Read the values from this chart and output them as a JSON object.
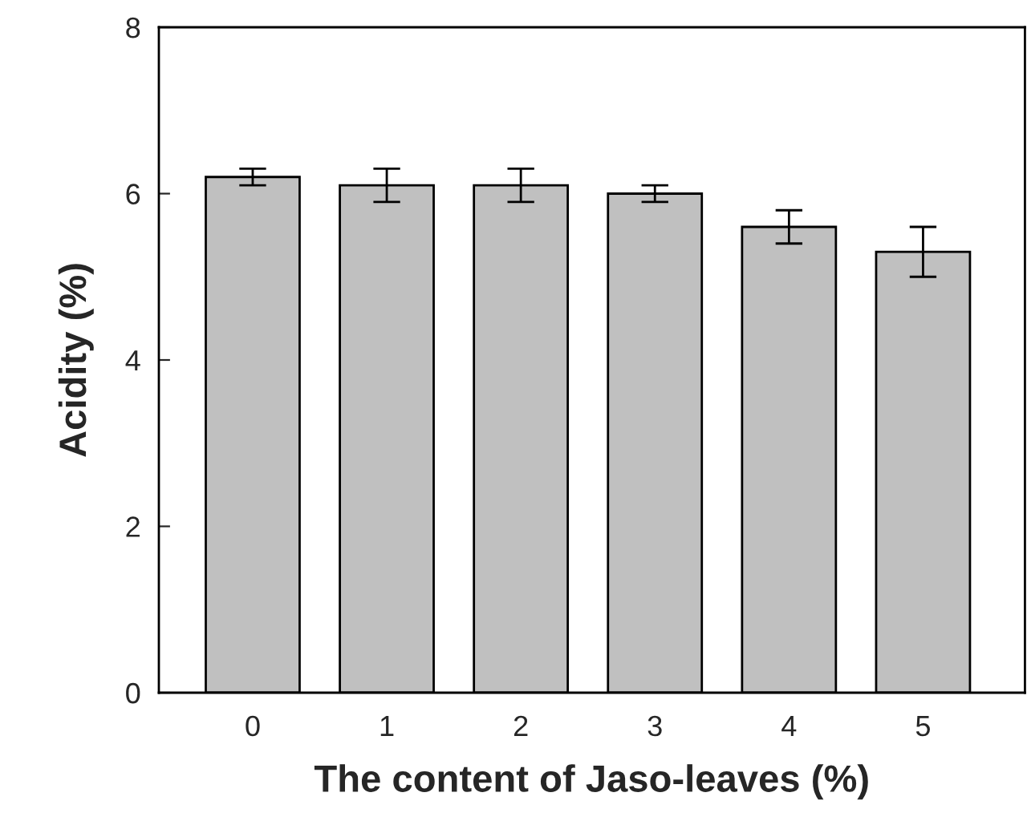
{
  "chart_data": {
    "type": "bar",
    "xlabel": "The content of Jaso-leaves (%)",
    "ylabel": "Acidity (%)",
    "categories": [
      "0",
      "1",
      "2",
      "3",
      "4",
      "5"
    ],
    "values": [
      6.2,
      6.1,
      6.1,
      6.0,
      5.6,
      5.3
    ],
    "errors": [
      0.1,
      0.2,
      0.2,
      0.1,
      0.2,
      0.3
    ],
    "color": "#c0c0c0",
    "ylim": [
      0,
      8
    ],
    "yticks": [
      0,
      2,
      4,
      6,
      8
    ],
    "grid": false,
    "legend": false
  }
}
